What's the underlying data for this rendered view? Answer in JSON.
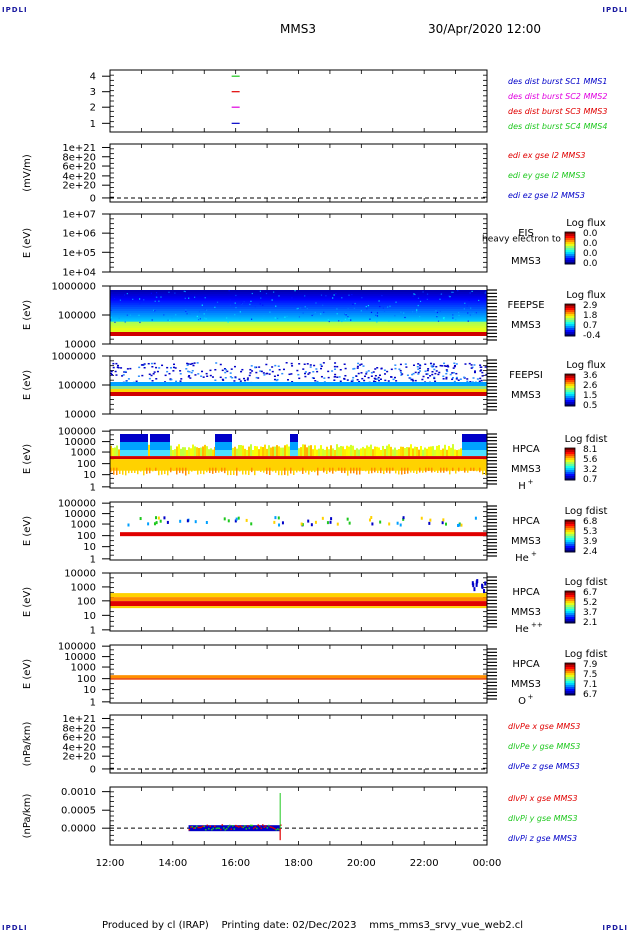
{
  "corner_label": "IPDLI",
  "header": {
    "mission": "MMS3",
    "date": "30/Apr/2020 12:00"
  },
  "footer": "Produced by cl (IRAP)    Printing date: 02/Dec/2023    mms_mms3_srvy_vue_web2.cl",
  "colors": {
    "red": "#e00000",
    "green": "#1ec81e",
    "blue": "#0000c8",
    "magenta": "#e000e0",
    "dash": "#000000"
  },
  "chart_data": [
    {
      "type": "scatter",
      "id": "burst",
      "ytick_labels": [
        "4",
        "3",
        "2",
        "1"
      ],
      "ylim": [
        0.5,
        4.5
      ],
      "legend": [
        {
          "label": "des dist burst SC1 MMS1",
          "color": "#0000c8"
        },
        {
          "label": "des dist burst SC2 MMS2",
          "color": "#e000e0"
        },
        {
          "label": "des dist burst SC3 MMS3",
          "color": "#e00000"
        },
        {
          "label": "des dist burst SC4 MMS4",
          "color": "#1ec81e"
        }
      ],
      "series": [
        {
          "x": "16:00",
          "y": 4,
          "color": "#1ec81e"
        },
        {
          "x": "16:00",
          "y": 3,
          "color": "#e00000"
        },
        {
          "x": "16:00",
          "y": 2,
          "color": "#e000e0"
        },
        {
          "x": "16:00",
          "y": 1,
          "color": "#0000c8"
        }
      ]
    },
    {
      "type": "line",
      "id": "edi",
      "ylabel": "(mV/m)",
      "ytick_labels": [
        "1e+21",
        "8e+20",
        "6e+20",
        "4e+20",
        "2e+20",
        "0"
      ],
      "ylim": [
        0,
        1e+21
      ],
      "legend": [
        {
          "label": "edi ex gse l2 MMS3",
          "color": "#e00000"
        },
        {
          "label": "edi ey gse l2 MMS3",
          "color": "#1ec81e"
        },
        {
          "label": "edi ez gse l2 MMS3",
          "color": "#0000c8"
        }
      ]
    },
    {
      "type": "heatmap",
      "id": "eis",
      "ylabel": "E (eV)",
      "ytick_labels": [
        "1e+07",
        "1e+06",
        "1e+05",
        "1e+04"
      ],
      "label": "EIS",
      "sublabel": "MMS3",
      "extra": "heavy electron to",
      "colorbar_title": "Log flux",
      "colorbar_ticks": [
        "0.0",
        "0.0",
        "0.0",
        "0.0"
      ]
    },
    {
      "type": "heatmap",
      "id": "feepse",
      "ylabel": "E (eV)",
      "ytick_labels": [
        "1000000",
        "100000",
        "10000"
      ],
      "label": "FEEPSE",
      "sublabel": "MMS3",
      "colorbar_title": "Log flux",
      "colorbar_ticks": [
        "2.9",
        "1.8",
        "0.7",
        "-0.4"
      ]
    },
    {
      "type": "heatmap",
      "id": "feepsi",
      "ylabel": "E (eV)",
      "ytick_labels": [
        "1000000",
        "100000",
        "10000"
      ],
      "label": "FEEPSI",
      "sublabel": "MMS3",
      "colorbar_title": "Log flux",
      "colorbar_ticks": [
        "3.6",
        "2.6",
        "1.5",
        "0.5"
      ]
    },
    {
      "type": "heatmap",
      "id": "hpca-h",
      "ylabel": "E (eV)",
      "ytick_labels": [
        "100000",
        "10000",
        "1000",
        "100",
        "10",
        "1"
      ],
      "label": "HPCA",
      "sublabel": "MMS3",
      "species": "H",
      "charge": "+",
      "colorbar_title": "Log fdist",
      "colorbar_ticks": [
        "8.1",
        "5.6",
        "3.2",
        "0.7"
      ]
    },
    {
      "type": "heatmap",
      "id": "hpca-he",
      "ylabel": "E (eV)",
      "ytick_labels": [
        "100000",
        "10000",
        "1000",
        "100",
        "10",
        "1"
      ],
      "label": "HPCA",
      "sublabel": "MMS3",
      "species": "He",
      "charge": "+",
      "colorbar_title": "Log fdist",
      "colorbar_ticks": [
        "6.8",
        "5.3",
        "3.9",
        "2.4"
      ]
    },
    {
      "type": "heatmap",
      "id": "hpca-hepp",
      "ylabel": "E (eV)",
      "ytick_labels": [
        "10000",
        "1000",
        "100",
        "10",
        "1"
      ],
      "label": "HPCA",
      "sublabel": "MMS3",
      "species": "He",
      "charge": "++",
      "colorbar_title": "Log fdist",
      "colorbar_ticks": [
        "6.7",
        "5.2",
        "3.7",
        "2.1"
      ]
    },
    {
      "type": "heatmap",
      "id": "hpca-o",
      "ylabel": "E (eV)",
      "ytick_labels": [
        "100000",
        "10000",
        "1000",
        "100",
        "10",
        "1"
      ],
      "label": "HPCA",
      "sublabel": "MMS3",
      "species": "O",
      "charge": "+",
      "colorbar_title": "Log fdist",
      "colorbar_ticks": [
        "7.9",
        "7.5",
        "7.1",
        "6.7"
      ]
    },
    {
      "type": "line",
      "id": "dpe",
      "ylabel": "(nPa/km)",
      "ytick_labels": [
        "1e+21",
        "8e+20",
        "6e+20",
        "4e+20",
        "2e+20",
        "0"
      ],
      "ylim": [
        0,
        1e+21
      ],
      "legend": [
        {
          "label": "dlvPe x gse MMS3",
          "color": "#e00000"
        },
        {
          "label": "dlvPe y gse MMS3",
          "color": "#1ec81e"
        },
        {
          "label": "dlvPe z gse MMS3",
          "color": "#0000c8"
        }
      ]
    },
    {
      "type": "line",
      "id": "dpi",
      "ylabel": "(nPa/km)",
      "ytick_labels": [
        "0.0010",
        "0.0005",
        "0.0000"
      ],
      "ylim": [
        -0.0004,
        0.0011
      ],
      "legend": [
        {
          "label": "dlvPi x gse MMS3",
          "color": "#e00000"
        },
        {
          "label": "dlvPi y gse MMS3",
          "color": "#1ec81e"
        },
        {
          "label": "dlvPi z gse MMS3",
          "color": "#0000c8"
        }
      ],
      "data_interval": [
        "14:30",
        "17:25"
      ],
      "spike": {
        "x": "17:25",
        "y": 0.0011
      }
    }
  ],
  "xaxis": {
    "tick_labels": [
      "12:00",
      "14:00",
      "16:00",
      "18:00",
      "20:00",
      "22:00",
      "00:00"
    ]
  }
}
